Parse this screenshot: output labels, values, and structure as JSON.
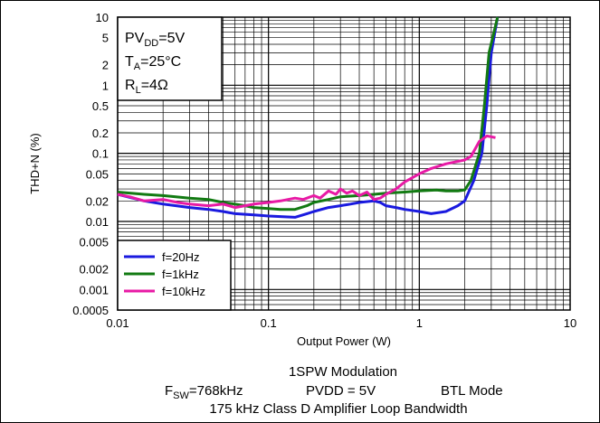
{
  "chart_data": {
    "type": "line",
    "title": "",
    "xlabel": "Output Power (W)",
    "ylabel": "THD+N (%)",
    "xscale": "log",
    "yscale": "log",
    "xlim": [
      0.01,
      10
    ],
    "ylim": [
      0.0005,
      10
    ],
    "grid": true,
    "x_ticks": [
      "0.01",
      "0.1",
      "1",
      "10"
    ],
    "y_ticks": [
      "10",
      "5",
      "2",
      "1",
      "0.5",
      "0.2",
      "0.1",
      "0.05",
      "0.02",
      "0.01",
      "0.005",
      "0.002",
      "0.001",
      "0.0005"
    ],
    "annotation": {
      "line1_main": "PV",
      "line1_sub": "DD",
      "line1_rest": "=5V",
      "line2_main": "T",
      "line2_sub": "A",
      "line2_rest": "=25°C",
      "line3_main": "R",
      "line3_sub": "L",
      "line3_rest": "=4Ω"
    },
    "legend_position": "bottom-left",
    "series": [
      {
        "name": "f=20Hz",
        "color": "#1a1adf",
        "points": [
          [
            0.01,
            0.025
          ],
          [
            0.015,
            0.02
          ],
          [
            0.02,
            0.018
          ],
          [
            0.03,
            0.016
          ],
          [
            0.04,
            0.015
          ],
          [
            0.05,
            0.014
          ],
          [
            0.06,
            0.013
          ],
          [
            0.08,
            0.0125
          ],
          [
            0.1,
            0.012
          ],
          [
            0.12,
            0.0118
          ],
          [
            0.15,
            0.0115
          ],
          [
            0.18,
            0.013
          ],
          [
            0.2,
            0.014
          ],
          [
            0.25,
            0.016
          ],
          [
            0.3,
            0.017
          ],
          [
            0.35,
            0.018
          ],
          [
            0.4,
            0.019
          ],
          [
            0.5,
            0.02
          ],
          [
            0.55,
            0.019
          ],
          [
            0.6,
            0.017
          ],
          [
            0.7,
            0.016
          ],
          [
            0.8,
            0.015
          ],
          [
            1.0,
            0.014
          ],
          [
            1.2,
            0.013
          ],
          [
            1.5,
            0.014
          ],
          [
            1.8,
            0.017
          ],
          [
            2.0,
            0.02
          ],
          [
            2.3,
            0.04
          ],
          [
            2.6,
            0.1
          ],
          [
            2.8,
            0.5
          ],
          [
            3.0,
            3
          ],
          [
            3.3,
            10
          ]
        ]
      },
      {
        "name": "f=1kHz",
        "color": "#127a12",
        "points": [
          [
            0.01,
            0.027
          ],
          [
            0.015,
            0.025
          ],
          [
            0.02,
            0.024
          ],
          [
            0.03,
            0.022
          ],
          [
            0.04,
            0.021
          ],
          [
            0.05,
            0.019
          ],
          [
            0.06,
            0.018
          ],
          [
            0.07,
            0.017
          ],
          [
            0.08,
            0.016
          ],
          [
            0.1,
            0.0155
          ],
          [
            0.12,
            0.015
          ],
          [
            0.15,
            0.015
          ],
          [
            0.18,
            0.017
          ],
          [
            0.2,
            0.019
          ],
          [
            0.25,
            0.021
          ],
          [
            0.3,
            0.023
          ],
          [
            0.4,
            0.024
          ],
          [
            0.5,
            0.025
          ],
          [
            0.6,
            0.026
          ],
          [
            0.8,
            0.027
          ],
          [
            1.0,
            0.028
          ],
          [
            1.3,
            0.029
          ],
          [
            1.5,
            0.028
          ],
          [
            1.8,
            0.028
          ],
          [
            2.0,
            0.029
          ],
          [
            2.2,
            0.04
          ],
          [
            2.5,
            0.1
          ],
          [
            2.7,
            0.5
          ],
          [
            2.9,
            3
          ],
          [
            3.3,
            10
          ]
        ]
      },
      {
        "name": "f=10kHz",
        "color": "#e81aa5",
        "points": [
          [
            0.01,
            0.025
          ],
          [
            0.012,
            0.023
          ],
          [
            0.015,
            0.02
          ],
          [
            0.02,
            0.021
          ],
          [
            0.025,
            0.019
          ],
          [
            0.03,
            0.018
          ],
          [
            0.04,
            0.017
          ],
          [
            0.05,
            0.018
          ],
          [
            0.06,
            0.016
          ],
          [
            0.07,
            0.017
          ],
          [
            0.08,
            0.018
          ],
          [
            0.1,
            0.019
          ],
          [
            0.12,
            0.02
          ],
          [
            0.15,
            0.022
          ],
          [
            0.17,
            0.021
          ],
          [
            0.2,
            0.024
          ],
          [
            0.22,
            0.022
          ],
          [
            0.25,
            0.028
          ],
          [
            0.28,
            0.025
          ],
          [
            0.3,
            0.03
          ],
          [
            0.33,
            0.026
          ],
          [
            0.36,
            0.028
          ],
          [
            0.4,
            0.024
          ],
          [
            0.45,
            0.027
          ],
          [
            0.5,
            0.021
          ],
          [
            0.55,
            0.022
          ],
          [
            0.6,
            0.025
          ],
          [
            0.7,
            0.03
          ],
          [
            0.8,
            0.038
          ],
          [
            1.0,
            0.05
          ],
          [
            1.2,
            0.06
          ],
          [
            1.5,
            0.07
          ],
          [
            2.0,
            0.08
          ],
          [
            2.2,
            0.09
          ],
          [
            2.5,
            0.15
          ],
          [
            2.8,
            0.18
          ],
          [
            3.2,
            0.17
          ]
        ]
      }
    ]
  },
  "caption": {
    "line1": "1SPW Modulation",
    "line2_f_main": "F",
    "line2_f_sub": "SW",
    "line2_f_rest": "=768kHz",
    "line2_pvdd": "PVDD = 5V",
    "line2_mode": "BTL Mode",
    "line3": "175 kHz Class D Amplifier Loop Bandwidth"
  }
}
